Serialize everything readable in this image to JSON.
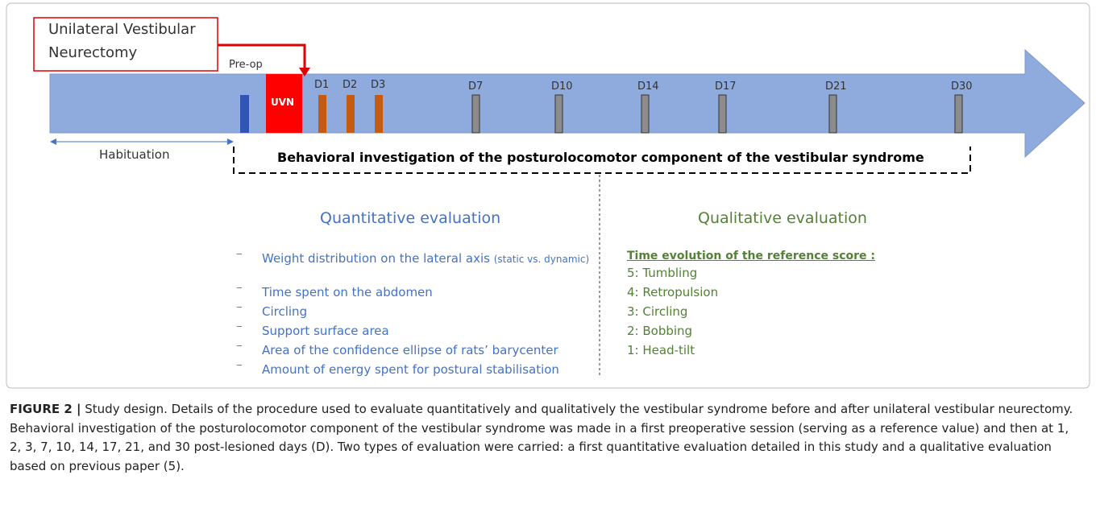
{
  "callout": "Unilateral Vestibular Neurectomy",
  "timeline": {
    "preop": "Pre-op",
    "uvn": "UVN",
    "days": [
      "D1",
      "D2",
      "D3",
      "D7",
      "D10",
      "D14",
      "D17",
      "D21",
      "D30"
    ]
  },
  "habituation": "Habituation",
  "bracket": "Behavioral investigation of the posturolocomotor component of the vestibular syndrome",
  "quantitative": {
    "title": "Quantitative evaluation",
    "items": [
      "Weight distribution on the lateral axis",
      "Time spent on the abdomen",
      "Circling",
      "Support surface area",
      "Area of the confidence ellipse of rats’ barycenter",
      "Amount of energy spent for postural stabilisation"
    ],
    "item_note": "(static vs. dynamic)"
  },
  "qualitative": {
    "title": "Qualitative evaluation",
    "subtitle": "Time evolution of the reference score :",
    "items": [
      "5: Tumbling",
      "4: Retropulsion",
      "3: Circling",
      "2: Bobbing",
      "1: Head-tilt"
    ]
  },
  "caption": {
    "label": "FIGURE 2 |",
    "text": "Study design. Details of the procedure used to evaluate quantitatively and qualitatively the vestibular syndrome before and after unilateral vestibular neurectomy. Behavioral investigation of the posturolocomotor component of the vestibular syndrome was made in a first preoperative session (serving as a reference value) and then at 1, 2, 3, 7, 10, 14, 17, 21, and 30 post-lesioned days (D). Two types of evaluation were carried: a first quantitative evaluation detailed in this study and a qualitative evaluation based on previous paper (5)."
  }
}
